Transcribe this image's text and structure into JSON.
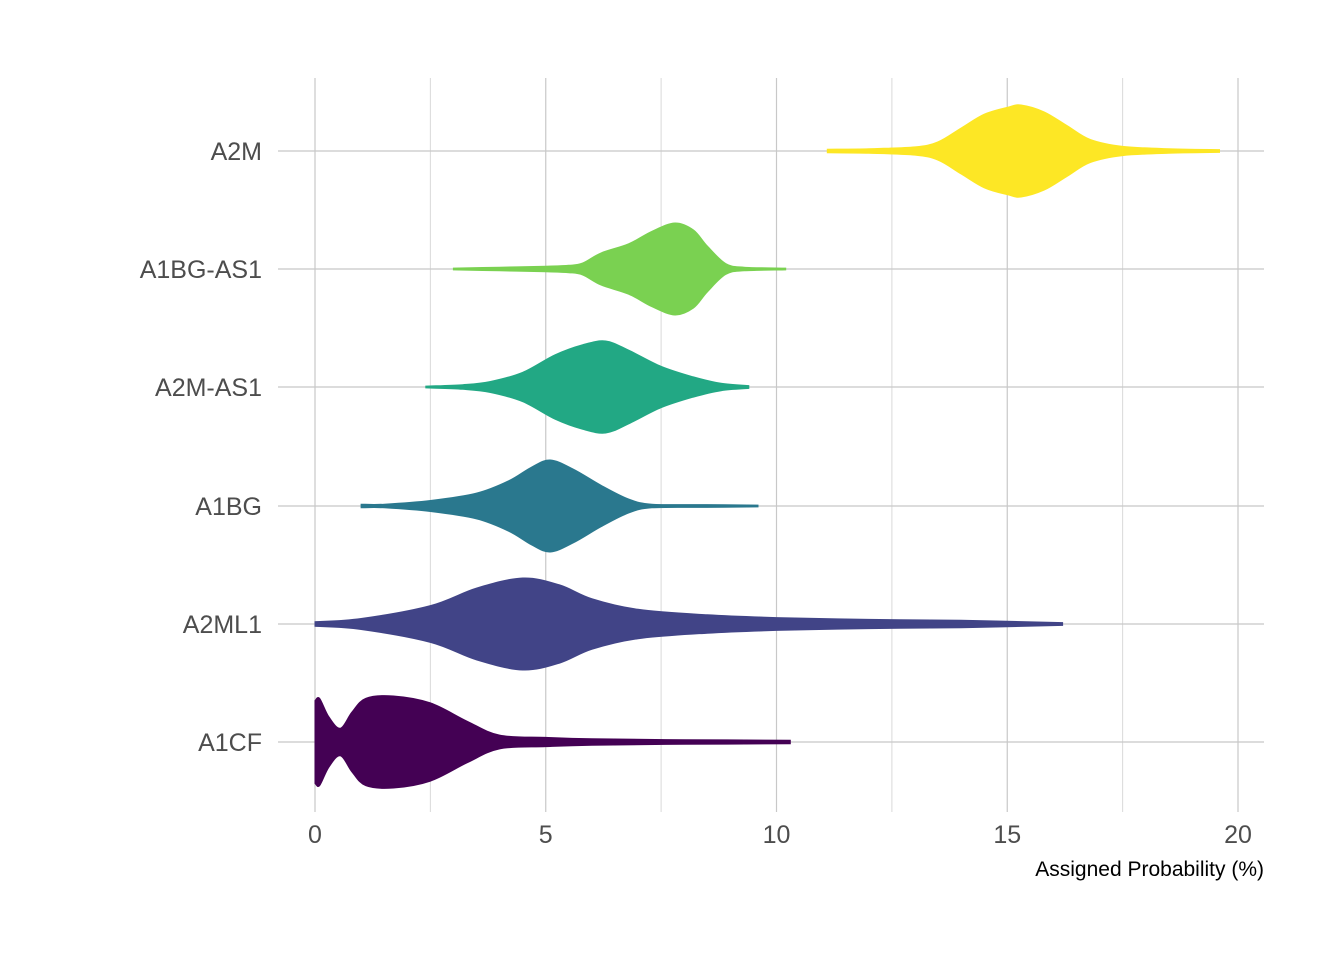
{
  "chart_data": {
    "type": "violin",
    "orientation": "horizontal",
    "title": "",
    "xlabel": "Assigned Probability (%)",
    "ylabel": "",
    "xlim": [
      -0.8,
      20.6
    ],
    "x_ticks": [
      0,
      5,
      10,
      15,
      20
    ],
    "x_tick_labels": [
      "0",
      "5",
      "10",
      "15",
      "20"
    ],
    "grid": true,
    "legend": "none",
    "categories": [
      "A2M",
      "A1BG-AS1",
      "A2M-AS1",
      "A1BG",
      "A2ML1",
      "A1CF"
    ],
    "series": [
      {
        "name": "A2M",
        "color": "#FDE725",
        "density_profile": [
          [
            11.1,
            0.04
          ],
          [
            12.0,
            0.05
          ],
          [
            13.0,
            0.09
          ],
          [
            13.5,
            0.2
          ],
          [
            14.0,
            0.5
          ],
          [
            14.5,
            0.8
          ],
          [
            15.0,
            0.95
          ],
          [
            15.3,
            1.0
          ],
          [
            15.8,
            0.85
          ],
          [
            16.3,
            0.55
          ],
          [
            16.8,
            0.25
          ],
          [
            17.5,
            0.1
          ],
          [
            18.5,
            0.05
          ],
          [
            19.6,
            0.03
          ]
        ]
      },
      {
        "name": "A1BG-AS1",
        "color": "#7AD151",
        "density_profile": [
          [
            3.0,
            0.02
          ],
          [
            4.0,
            0.04
          ],
          [
            5.0,
            0.06
          ],
          [
            5.5,
            0.08
          ],
          [
            5.8,
            0.13
          ],
          [
            6.2,
            0.35
          ],
          [
            6.8,
            0.55
          ],
          [
            7.3,
            0.82
          ],
          [
            7.8,
            1.0
          ],
          [
            8.2,
            0.85
          ],
          [
            8.5,
            0.5
          ],
          [
            8.9,
            0.12
          ],
          [
            9.3,
            0.04
          ],
          [
            10.2,
            0.02
          ]
        ]
      },
      {
        "name": "A2M-AS1",
        "color": "#22A884",
        "density_profile": [
          [
            2.4,
            0.02
          ],
          [
            3.2,
            0.05
          ],
          [
            3.8,
            0.12
          ],
          [
            4.5,
            0.32
          ],
          [
            5.2,
            0.7
          ],
          [
            5.8,
            0.92
          ],
          [
            6.3,
            1.0
          ],
          [
            6.8,
            0.8
          ],
          [
            7.5,
            0.45
          ],
          [
            8.2,
            0.22
          ],
          [
            8.8,
            0.08
          ],
          [
            9.4,
            0.03
          ]
        ]
      },
      {
        "name": "A1BG",
        "color": "#2A788E",
        "density_profile": [
          [
            1.0,
            0.04
          ],
          [
            1.5,
            0.04
          ],
          [
            2.5,
            0.12
          ],
          [
            3.5,
            0.28
          ],
          [
            4.2,
            0.55
          ],
          [
            4.7,
            0.85
          ],
          [
            5.1,
            1.0
          ],
          [
            5.6,
            0.8
          ],
          [
            6.2,
            0.45
          ],
          [
            6.8,
            0.15
          ],
          [
            7.3,
            0.04
          ],
          [
            8.5,
            0.03
          ],
          [
            9.6,
            0.02
          ]
        ]
      },
      {
        "name": "A2ML1",
        "color": "#414487",
        "density_profile": [
          [
            0.0,
            0.05
          ],
          [
            1.0,
            0.12
          ],
          [
            2.5,
            0.4
          ],
          [
            3.5,
            0.78
          ],
          [
            4.5,
            1.0
          ],
          [
            5.3,
            0.85
          ],
          [
            6.0,
            0.55
          ],
          [
            7.0,
            0.32
          ],
          [
            8.5,
            0.2
          ],
          [
            10.0,
            0.14
          ],
          [
            12.0,
            0.1
          ],
          [
            14.0,
            0.08
          ],
          [
            16.2,
            0.03
          ]
        ]
      },
      {
        "name": "A1CF",
        "color": "#440154",
        "density_profile": [
          [
            0.0,
            0.9
          ],
          [
            0.1,
            0.95
          ],
          [
            0.3,
            0.55
          ],
          [
            0.55,
            0.3
          ],
          [
            0.8,
            0.65
          ],
          [
            1.1,
            0.95
          ],
          [
            1.7,
            1.0
          ],
          [
            2.5,
            0.85
          ],
          [
            3.3,
            0.45
          ],
          [
            4.0,
            0.15
          ],
          [
            5.0,
            0.1
          ],
          [
            6.0,
            0.07
          ],
          [
            8.0,
            0.05
          ],
          [
            10.3,
            0.04
          ]
        ]
      }
    ]
  }
}
